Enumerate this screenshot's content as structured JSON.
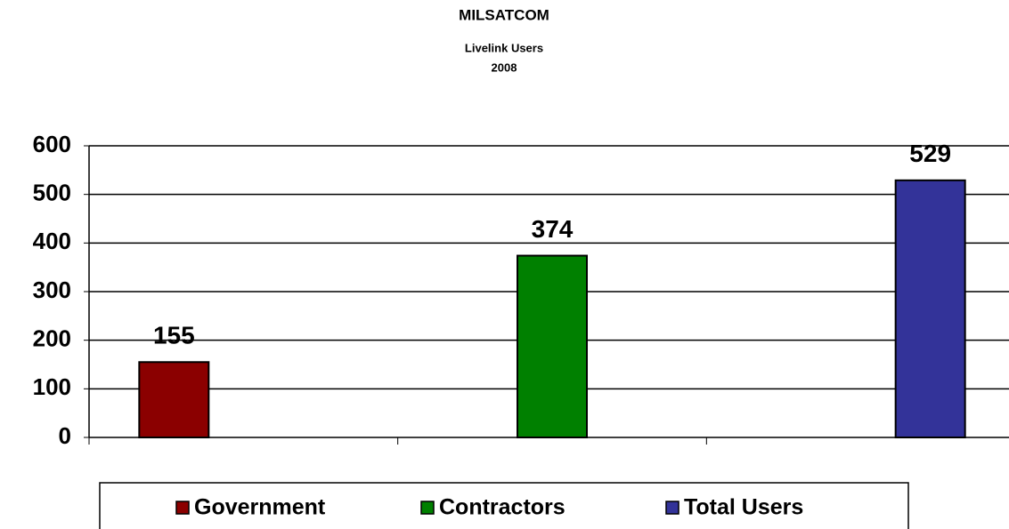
{
  "chart_data": {
    "type": "bar",
    "title": "MILSATCOM",
    "subtitle": [
      "Livelink Users",
      "2008"
    ],
    "categories": [
      null,
      null,
      null
    ],
    "series": [
      {
        "name": "Government",
        "color": "#8b0000",
        "values": [
          155,
          null,
          null
        ]
      },
      {
        "name": "Contractors",
        "color": "#008000",
        "values": [
          null,
          374,
          null
        ]
      },
      {
        "name": "Total Users",
        "color": "#333399",
        "values": [
          null,
          null,
          529
        ]
      }
    ],
    "ylim": [
      0,
      600
    ],
    "yticks": [
      0,
      100,
      200,
      300,
      400,
      500,
      600
    ],
    "grid": true,
    "legend": "bottom"
  }
}
